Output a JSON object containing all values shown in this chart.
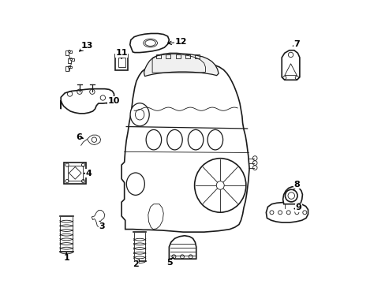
{
  "bg_color": "#ffffff",
  "line_color": "#1a1a1a",
  "label_color": "#000000",
  "figsize": [
    4.89,
    3.6
  ],
  "dpi": 100,
  "callouts": {
    "1": {
      "txt": [
        0.048,
        0.085
      ],
      "arr": [
        0.048,
        0.115
      ]
    },
    "2": {
      "txt": [
        0.295,
        0.062
      ],
      "arr": [
        0.31,
        0.082
      ]
    },
    "3": {
      "txt": [
        0.175,
        0.198
      ],
      "arr": [
        0.165,
        0.22
      ]
    },
    "4": {
      "txt": [
        0.128,
        0.388
      ],
      "arr": [
        0.108,
        0.388
      ]
    },
    "5": {
      "txt": [
        0.418,
        0.068
      ],
      "arr": [
        0.432,
        0.09
      ]
    },
    "6": {
      "txt": [
        0.092,
        0.518
      ],
      "arr": [
        0.118,
        0.51
      ]
    },
    "7": {
      "txt": [
        0.872,
        0.85
      ],
      "arr": [
        0.848,
        0.838
      ]
    },
    "8": {
      "txt": [
        0.872,
        0.348
      ],
      "arr": [
        0.855,
        0.322
      ]
    },
    "9": {
      "txt": [
        0.878,
        0.265
      ],
      "arr": [
        0.852,
        0.258
      ]
    },
    "10": {
      "txt": [
        0.218,
        0.648
      ],
      "arr": [
        0.185,
        0.632
      ]
    },
    "11": {
      "txt": [
        0.245,
        0.818
      ],
      "arr": [
        0.245,
        0.795
      ]
    },
    "12": {
      "txt": [
        0.458,
        0.858
      ],
      "arr": [
        0.4,
        0.852
      ]
    },
    "13": {
      "txt": [
        0.122,
        0.845
      ],
      "arr": [
        0.085,
        0.818
      ]
    }
  }
}
